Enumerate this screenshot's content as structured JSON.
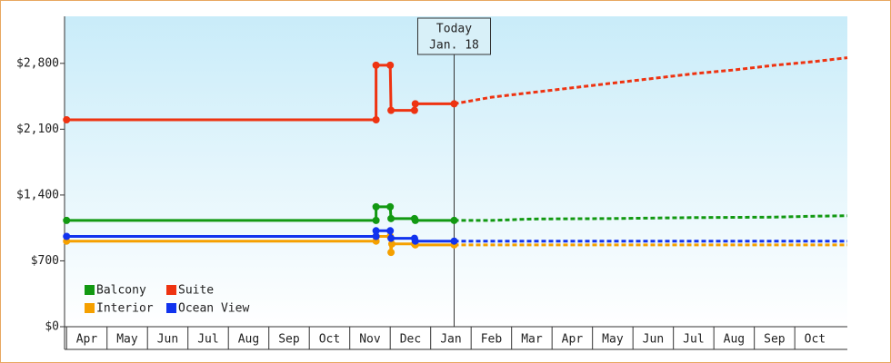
{
  "chart_data": {
    "type": "line",
    "xlim": [
      -0.05,
      19.3
    ],
    "ylim": [
      0,
      3300
    ],
    "yticks": [
      {
        "value": 0,
        "label": "$0"
      },
      {
        "value": 700,
        "label": "$700"
      },
      {
        "value": 1400,
        "label": "$1,400"
      },
      {
        "value": 2100,
        "label": "$2,100"
      },
      {
        "value": 2800,
        "label": "$2,800"
      }
    ],
    "xticks": [
      {
        "value": 0,
        "label": "Apr"
      },
      {
        "value": 1,
        "label": "May"
      },
      {
        "value": 2,
        "label": "Jun"
      },
      {
        "value": 3,
        "label": "Jul"
      },
      {
        "value": 4,
        "label": "Aug"
      },
      {
        "value": 5,
        "label": "Sep"
      },
      {
        "value": 6,
        "label": "Oct"
      },
      {
        "value": 7,
        "label": "Nov"
      },
      {
        "value": 8,
        "label": "Dec"
      },
      {
        "value": 9,
        "label": "Jan"
      },
      {
        "value": 10,
        "label": "Feb"
      },
      {
        "value": 11,
        "label": "Mar"
      },
      {
        "value": 12,
        "label": "Apr"
      },
      {
        "value": 13,
        "label": "May"
      },
      {
        "value": 14,
        "label": "Jun"
      },
      {
        "value": 15,
        "label": "Jul"
      },
      {
        "value": 16,
        "label": "Aug"
      },
      {
        "value": 17,
        "label": "Sep"
      },
      {
        "value": 18,
        "label": "Oct"
      }
    ],
    "annotation": {
      "x": 9.58,
      "lines": [
        "Today",
        "Jan. 18"
      ]
    },
    "series": [
      {
        "name": "Balcony",
        "color": "#129912",
        "x": [
          0,
          7.65,
          7.65,
          8.0,
          8.02,
          8.6,
          8.62,
          9.58
        ],
        "values": [
          1130,
          1130,
          1275,
          1275,
          1150,
          1150,
          1130,
          1130
        ],
        "projected_x": [
          9.58,
          10.5,
          11.5,
          13.5,
          15.5,
          17.5,
          18.5,
          19.3
        ],
        "projected_values": [
          1130,
          1130,
          1145,
          1150,
          1160,
          1165,
          1175,
          1180
        ]
      },
      {
        "name": "Suite",
        "color": "#ee3311",
        "x": [
          0,
          7.65,
          7.65,
          8.0,
          8.02,
          8.6,
          8.62,
          9.58
        ],
        "values": [
          2200,
          2200,
          2780,
          2780,
          2300,
          2300,
          2370,
          2370
        ],
        "projected_x": [
          9.58,
          10.5,
          11.5,
          12.5,
          13.5,
          14.5,
          15.5,
          16.5,
          17.5,
          18.5,
          19.3
        ],
        "projected_values": [
          2370,
          2440,
          2490,
          2540,
          2590,
          2640,
          2690,
          2730,
          2780,
          2820,
          2860
        ]
      },
      {
        "name": "Interior",
        "color": "#f5a000",
        "x": [
          0,
          7.65,
          7.65,
          8.0,
          8.02,
          8.04,
          8.6,
          8.62,
          9.58
        ],
        "values": [
          910,
          910,
          960,
          960,
          790,
          880,
          880,
          870,
          870
        ],
        "projected_x": [
          9.58,
          19.3
        ],
        "projected_values": [
          870,
          870
        ]
      },
      {
        "name": "Ocean View",
        "color": "#1133ee",
        "x": [
          0,
          7.65,
          7.65,
          8.0,
          8.02,
          8.6,
          8.62,
          9.58
        ],
        "values": [
          960,
          960,
          1020,
          1020,
          940,
          940,
          910,
          910
        ],
        "projected_x": [
          9.58,
          19.3
        ],
        "projected_values": [
          910,
          910
        ]
      }
    ]
  }
}
